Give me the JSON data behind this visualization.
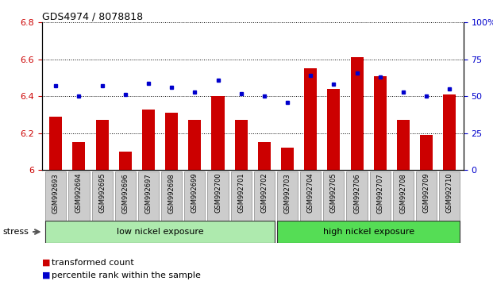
{
  "title": "GDS4974 / 8078818",
  "samples": [
    "GSM992693",
    "GSM992694",
    "GSM992695",
    "GSM992696",
    "GSM992697",
    "GSM992698",
    "GSM992699",
    "GSM992700",
    "GSM992701",
    "GSM992702",
    "GSM992703",
    "GSM992704",
    "GSM992705",
    "GSM992706",
    "GSM992707",
    "GSM992708",
    "GSM992709",
    "GSM992710"
  ],
  "bar_values": [
    6.29,
    6.15,
    6.27,
    6.1,
    6.33,
    6.31,
    6.27,
    6.4,
    6.27,
    6.15,
    6.12,
    6.55,
    6.44,
    6.61,
    6.51,
    6.27,
    6.19,
    6.41
  ],
  "dot_values": [
    57,
    50,
    57,
    51,
    59,
    56,
    53,
    61,
    52,
    50,
    46,
    64,
    58,
    66,
    63,
    53,
    50,
    55
  ],
  "bar_color": "#cc0000",
  "dot_color": "#0000cc",
  "ylim_left": [
    6.0,
    6.8
  ],
  "ylim_right": [
    0,
    100
  ],
  "yticks_left": [
    6.0,
    6.2,
    6.4,
    6.6,
    6.8
  ],
  "yticks_right": [
    0,
    25,
    50,
    75,
    100
  ],
  "ytick_labels_right": [
    "0",
    "25",
    "50",
    "75",
    "100%"
  ],
  "ytick_labels_left": [
    "6",
    "6.2",
    "6.4",
    "6.6",
    "6.8"
  ],
  "low_nickel_count": 10,
  "high_nickel_count": 8,
  "low_nickel_label": "low nickel exposure",
  "high_nickel_label": "high nickel exposure",
  "stress_label": "stress",
  "legend_bar_label": "transformed count",
  "legend_dot_label": "percentile rank within the sample",
  "low_nickel_color": "#aeeaae",
  "high_nickel_color": "#55dd55",
  "sample_box_color": "#cccccc",
  "sample_box_edge": "#888888"
}
